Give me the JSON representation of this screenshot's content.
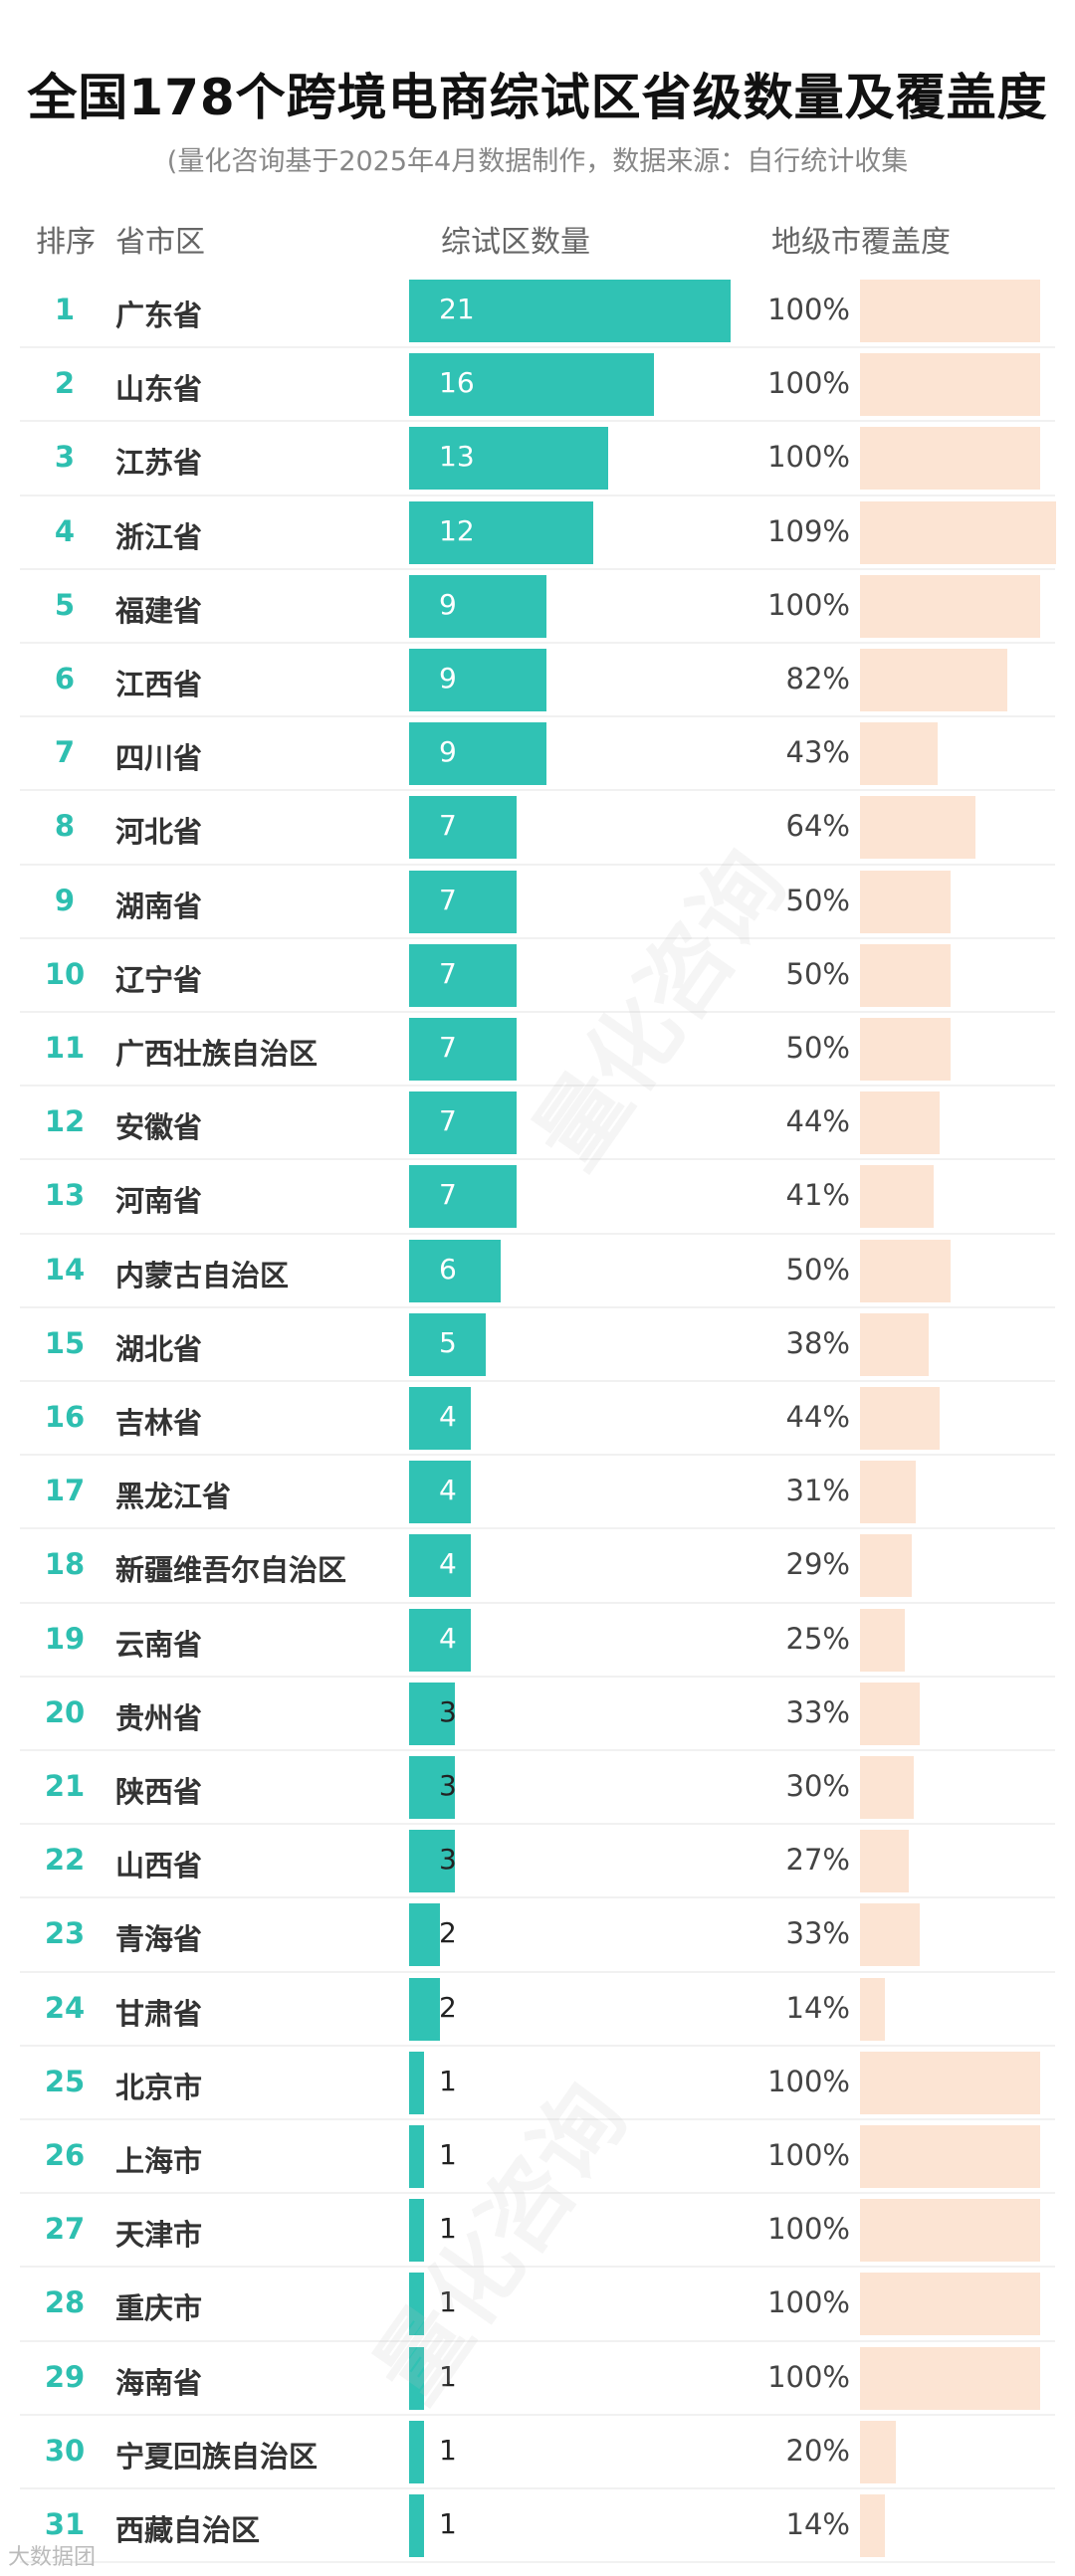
{
  "title": "全国178个跨境电商综试区省级数量及覆盖度",
  "subtitle": "(量化咨询基于2025年4月数据制作，数据来源：自行统计收集",
  "header": {
    "rank": "排序",
    "region": "省市区",
    "count": "综试区数量",
    "coverage": "地级市覆盖度"
  },
  "watermark_text": "量化咨询",
  "logo_text": "大数据团",
  "colors": {
    "count_bar": "#30c2b4",
    "coverage_bar": "#fce4d3",
    "rank_text": "#2ebfb0"
  },
  "chart_data": {
    "type": "table",
    "columns": [
      "排序",
      "省市区",
      "综试区数量",
      "地级市覆盖度"
    ],
    "rows": [
      {
        "rank": "1",
        "name": "广东省",
        "count": 21,
        "coverage": "100%",
        "coverage_value": 100
      },
      {
        "rank": "2",
        "name": "山东省",
        "count": 16,
        "coverage": "100%",
        "coverage_value": 100
      },
      {
        "rank": "3",
        "name": "江苏省",
        "count": 13,
        "coverage": "100%",
        "coverage_value": 100
      },
      {
        "rank": "4",
        "name": "浙江省",
        "count": 12,
        "coverage": "109%",
        "coverage_value": 109
      },
      {
        "rank": "5",
        "name": "福建省",
        "count": 9,
        "coverage": "100%",
        "coverage_value": 100
      },
      {
        "rank": "6",
        "name": "江西省",
        "count": 9,
        "coverage": "82%",
        "coverage_value": 82
      },
      {
        "rank": "7",
        "name": "四川省",
        "count": 9,
        "coverage": "43%",
        "coverage_value": 43
      },
      {
        "rank": "8",
        "name": "河北省",
        "count": 7,
        "coverage": "64%",
        "coverage_value": 64
      },
      {
        "rank": "9",
        "name": "湖南省",
        "count": 7,
        "coverage": "50%",
        "coverage_value": 50
      },
      {
        "rank": "10",
        "name": "辽宁省",
        "count": 7,
        "coverage": "50%",
        "coverage_value": 50
      },
      {
        "rank": "11",
        "name": "广西壮族自治区",
        "count": 7,
        "coverage": "50%",
        "coverage_value": 50
      },
      {
        "rank": "12",
        "name": "安徽省",
        "count": 7,
        "coverage": "44%",
        "coverage_value": 44
      },
      {
        "rank": "13",
        "name": "河南省",
        "count": 7,
        "coverage": "41%",
        "coverage_value": 41
      },
      {
        "rank": "14",
        "name": "内蒙古自治区",
        "count": 6,
        "coverage": "50%",
        "coverage_value": 50
      },
      {
        "rank": "15",
        "name": "湖北省",
        "count": 5,
        "coverage": "38%",
        "coverage_value": 38
      },
      {
        "rank": "16",
        "name": "吉林省",
        "count": 4,
        "coverage": "44%",
        "coverage_value": 44
      },
      {
        "rank": "17",
        "name": "黑龙江省",
        "count": 4,
        "coverage": "31%",
        "coverage_value": 31
      },
      {
        "rank": "18",
        "name": "新疆维吾尔自治区",
        "count": 4,
        "coverage": "29%",
        "coverage_value": 29
      },
      {
        "rank": "19",
        "name": "云南省",
        "count": 4,
        "coverage": "25%",
        "coverage_value": 25
      },
      {
        "rank": "20",
        "name": "贵州省",
        "count": 3,
        "coverage": "33%",
        "coverage_value": 33
      },
      {
        "rank": "21",
        "name": "陕西省",
        "count": 3,
        "coverage": "30%",
        "coverage_value": 30
      },
      {
        "rank": "22",
        "name": "山西省",
        "count": 3,
        "coverage": "27%",
        "coverage_value": 27
      },
      {
        "rank": "23",
        "name": "青海省",
        "count": 2,
        "coverage": "33%",
        "coverage_value": 33
      },
      {
        "rank": "24",
        "name": "甘肃省",
        "count": 2,
        "coverage": "14%",
        "coverage_value": 14
      },
      {
        "rank": "25",
        "name": "北京市",
        "count": 1,
        "coverage": "100%",
        "coverage_value": 100
      },
      {
        "rank": "26",
        "name": "上海市",
        "count": 1,
        "coverage": "100%",
        "coverage_value": 100
      },
      {
        "rank": "27",
        "name": "天津市",
        "count": 1,
        "coverage": "100%",
        "coverage_value": 100
      },
      {
        "rank": "28",
        "name": "重庆市",
        "count": 1,
        "coverage": "100%",
        "coverage_value": 100
      },
      {
        "rank": "29",
        "name": "海南省",
        "count": 1,
        "coverage": "100%",
        "coverage_value": 100
      },
      {
        "rank": "30",
        "name": "宁夏回族自治区",
        "count": 1,
        "coverage": "20%",
        "coverage_value": 20
      },
      {
        "rank": "31",
        "name": "西藏自治区",
        "count": 1,
        "coverage": "14%",
        "coverage_value": 14
      }
    ]
  }
}
